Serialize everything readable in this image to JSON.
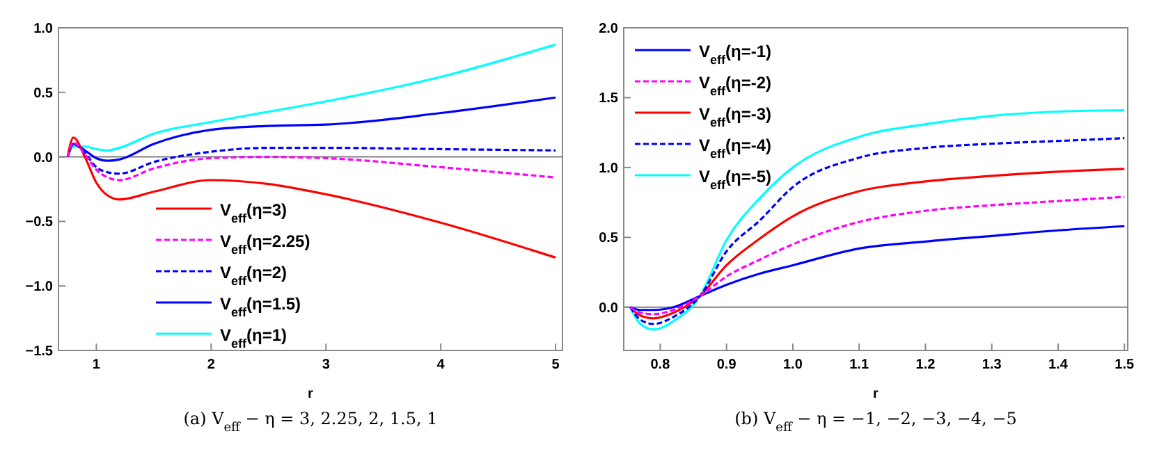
{
  "chart_data": [
    {
      "type": "line",
      "title": "(a) V$_{eff}$ − η = 3, 2.25, 2, 1.5, 1",
      "xlabel": "r",
      "xlim": [
        0.67,
        5.06
      ],
      "ylim": [
        -1.5,
        1.0
      ],
      "xticks": [
        1,
        2,
        3,
        4,
        5
      ],
      "yticks": [
        {
          "value": -1.5,
          "label": "−1.5"
        },
        {
          "value": -1.0,
          "label": "−1.0"
        },
        {
          "value": -0.5,
          "label": "−0.5"
        },
        {
          "value": 0,
          "label": "0.0"
        },
        {
          "value": 0.5,
          "label": "0.5"
        },
        {
          "value": 1.0,
          "label": "1.0"
        }
      ],
      "legend": "bottom",
      "grid": false,
      "ref_lines": [
        {
          "axis": "y",
          "value": 0,
          "color": "#808080"
        }
      ],
      "x": [
        0.75,
        0.8,
        0.9,
        1.0,
        1.1,
        1.2,
        1.5,
        2,
        2.5,
        3,
        4,
        5
      ],
      "series": [
        {
          "name": "V$_{eff}$(η=3)",
          "color": "#ff0000",
          "line_style": "solid",
          "values": [
            0,
            0.15,
            0.0,
            -0.2,
            -0.3,
            -0.33,
            -0.27,
            -0.18,
            -0.21,
            -0.29,
            -0.51,
            -0.78
          ]
        },
        {
          "name": "V$_{eff}$(η=2.25)",
          "color": "#ff00ff",
          "line_style": "dashed",
          "values": [
            0,
            0.11,
            0.02,
            -0.1,
            -0.16,
            -0.18,
            -0.09,
            -0.01,
            0.0,
            -0.01,
            -0.08,
            -0.16
          ]
        },
        {
          "name": "V$_{eff}$(η=2)",
          "color": "#0000ff",
          "line_style": "dashed",
          "values": [
            0,
            0.1,
            0.03,
            -0.08,
            -0.12,
            -0.13,
            -0.04,
            0.04,
            0.07,
            0.07,
            0.06,
            0.05
          ]
        },
        {
          "name": "V$_{eff}$(η=1.5)",
          "color": "#0000ff",
          "line_style": "solid",
          "values": [
            0,
            0.1,
            0.05,
            -0.01,
            -0.03,
            -0.02,
            0.1,
            0.21,
            0.24,
            0.25,
            0.34,
            0.46
          ]
        },
        {
          "name": "V$_{eff}$(η=1)",
          "color": "#00ffff",
          "line_style": "solid",
          "values": [
            0,
            0.08,
            0.08,
            0.06,
            0.05,
            0.07,
            0.18,
            0.27,
            0.35,
            0.43,
            0.62,
            0.87
          ]
        }
      ]
    },
    {
      "type": "line",
      "title": "(b) V$_{eff}$ − η = −1, −2, −3, −4, −5",
      "xlabel": "r",
      "xlim": [
        0.745,
        1.505
      ],
      "ylim": [
        -0.31,
        2.0
      ],
      "xticks": [
        {
          "value": 0.8,
          "label": "0.8"
        },
        {
          "value": 0.9,
          "label": "0.9"
        },
        {
          "value": 1.0,
          "label": "1.0"
        },
        {
          "value": 1.1,
          "label": "1.1"
        },
        {
          "value": 1.2,
          "label": "1.2"
        },
        {
          "value": 1.3,
          "label": "1.3"
        },
        {
          "value": 1.4,
          "label": "1.4"
        },
        {
          "value": 1.5,
          "label": "1.5"
        }
      ],
      "yticks": [
        {
          "value": 0,
          "label": "0.0"
        },
        {
          "value": 0.5,
          "label": "0.5"
        },
        {
          "value": 1.0,
          "label": "1.0"
        },
        {
          "value": 1.5,
          "label": "1.5"
        },
        {
          "value": 2.0,
          "label": "2.0"
        }
      ],
      "legend": "top left",
      "grid": false,
      "ref_lines": [
        {
          "axis": "y",
          "value": 0,
          "color": "#808080"
        }
      ],
      "x": [
        0.755,
        0.77,
        0.79,
        0.82,
        0.86,
        0.9,
        0.95,
        1.0,
        1.1,
        1.2,
        1.3,
        1.4,
        1.5
      ],
      "series": [
        {
          "name": "V$_{eff}$(η=-1)",
          "color": "#0000ff",
          "line_style": "solid",
          "values": [
            0,
            -0.02,
            -0.02,
            0.0,
            0.08,
            0.16,
            0.24,
            0.3,
            0.42,
            0.47,
            0.51,
            0.55,
            0.58
          ]
        },
        {
          "name": "V$_{eff}$(η=-2)",
          "color": "#ff00ff",
          "line_style": "dashed",
          "values": [
            0,
            -0.04,
            -0.05,
            -0.02,
            0.08,
            0.22,
            0.34,
            0.45,
            0.61,
            0.69,
            0.73,
            0.76,
            0.79
          ]
        },
        {
          "name": "V$_{eff}$(η=-3)",
          "color": "#ff0000",
          "line_style": "solid",
          "values": [
            0,
            -0.06,
            -0.08,
            -0.04,
            0.08,
            0.3,
            0.49,
            0.65,
            0.83,
            0.9,
            0.94,
            0.97,
            0.99
          ]
        },
        {
          "name": "V$_{eff}$(η=-4)",
          "color": "#0000ff",
          "line_style": "dashed",
          "values": [
            0,
            -0.09,
            -0.12,
            -0.07,
            0.08,
            0.4,
            0.62,
            0.86,
            1.07,
            1.14,
            1.17,
            1.19,
            1.21
          ]
        },
        {
          "name": "V$_{eff}$(η=-5)",
          "color": "#00ffff",
          "line_style": "solid",
          "values": [
            0,
            -0.12,
            -0.16,
            -0.1,
            0.08,
            0.48,
            0.78,
            1.0,
            1.22,
            1.31,
            1.37,
            1.4,
            1.41
          ]
        }
      ]
    }
  ]
}
